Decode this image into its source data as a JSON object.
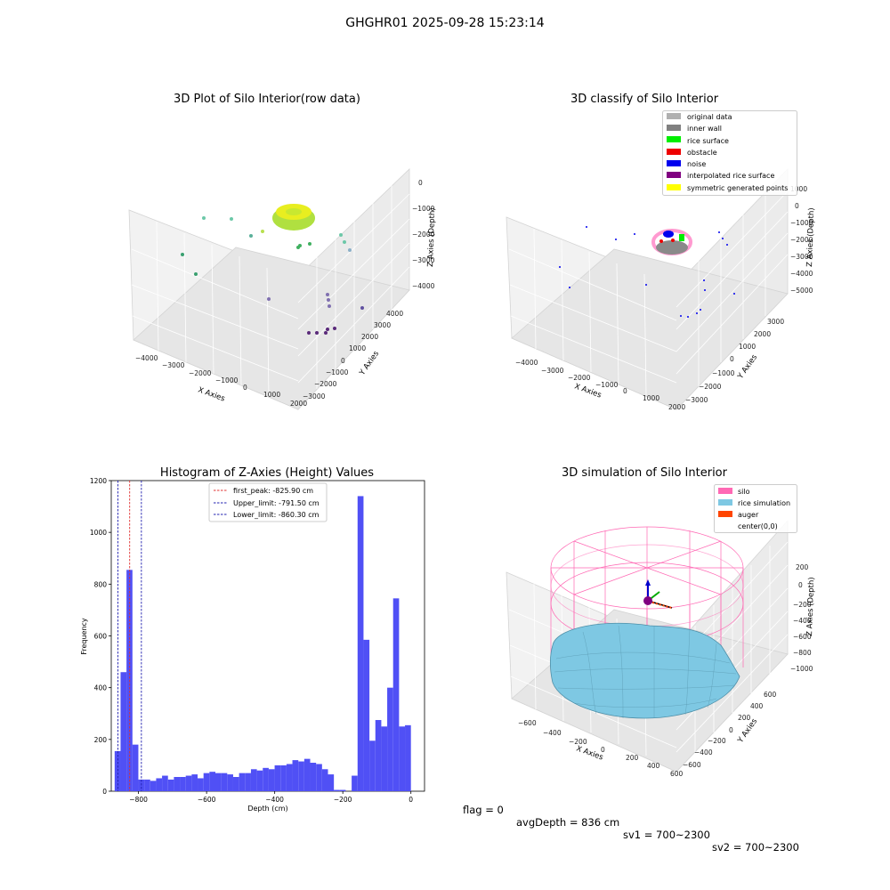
{
  "figure_title": "GHGHR01 2025-09-28 15:23:14",
  "footer": {
    "flag": "flag = 0",
    "avg_depth": "avgDepth = 836 cm",
    "sv1": "sv1 = 700~2300",
    "sv2": "sv2 = 700~2300"
  },
  "colors": {
    "hist_bar": "#5050f5",
    "first_peak_line": "#e03030",
    "limit_line": "#2020b0",
    "silo": "#ff69b4",
    "rice_sim": "#7ec8e3",
    "auger": "#ff4500"
  },
  "chart_data": [
    {
      "type": "scatter",
      "title": "3D Plot of Silo Interior(row data)",
      "xlabel": "X Axies",
      "ylabel": "Y Axies",
      "zlabel": "Z Axies (Depth)",
      "x_ticks": [
        "−4000",
        "−3000",
        "−2000",
        "−1000",
        "0",
        "1000",
        "2000"
      ],
      "y_ticks": [
        "−3000",
        "−2000",
        "−1000",
        "0",
        "1000",
        "2000",
        "3000",
        "4000"
      ],
      "z_ticks": [
        "−4000",
        "−3000",
        "−2000",
        "−1000",
        "0"
      ]
    },
    {
      "type": "scatter",
      "title": "3D classify of Silo Interior",
      "xlabel": "X Axies",
      "ylabel": "Y Axies",
      "zlabel": "Z Axies (Depth)",
      "x_ticks": [
        "−4000",
        "−3000",
        "−2000",
        "−1000",
        "0",
        "1000",
        "2000"
      ],
      "y_ticks": [
        "−3000",
        "−2000",
        "−1000",
        "0",
        "1000",
        "2000",
        "3000"
      ],
      "z_ticks": [
        "−5000",
        "−4000",
        "−3000",
        "−2000",
        "−1000",
        "0",
        "1000"
      ],
      "legend": [
        {
          "label": "original data",
          "color": "#b0b0b0"
        },
        {
          "label": "inner wall",
          "color": "#808080"
        },
        {
          "label": "rice surface",
          "color": "#00ee00"
        },
        {
          "label": "obstacle",
          "color": "#ee0000"
        },
        {
          "label": "noise",
          "color": "#0000ee"
        },
        {
          "label": "interpolated rice surface",
          "color": "#800080"
        },
        {
          "label": "symmetric generated points",
          "color": "#ffff00"
        }
      ],
      "legend_placement": "top-right"
    },
    {
      "type": "bar",
      "title": "Histogram of Z-Axies (Height) Values",
      "xlabel": "Depth (cm)",
      "ylabel": "Frequency",
      "xlim": [
        -880,
        40
      ],
      "ylim": [
        0,
        1200
      ],
      "x_ticks": [
        -800,
        -600,
        -400,
        -200,
        0
      ],
      "y_ticks": [
        0,
        200,
        400,
        600,
        800,
        1000,
        1200
      ],
      "bin_start": -870,
      "bin_width": 17.4,
      "values": [
        155,
        460,
        855,
        180,
        45,
        45,
        40,
        50,
        60,
        45,
        55,
        55,
        60,
        65,
        50,
        70,
        75,
        70,
        70,
        65,
        55,
        70,
        70,
        85,
        80,
        90,
        85,
        100,
        100,
        105,
        120,
        115,
        125,
        110,
        105,
        85,
        65,
        5,
        5,
        0,
        60,
        1140,
        585,
        195,
        275,
        250,
        400,
        745,
        250,
        255
      ],
      "vlines": [
        {
          "label": "first_peak: -825.90 cm",
          "x": -825.9,
          "role": "first_peak"
        },
        {
          "label": "Upper_limit: -791.50 cm",
          "x": -791.5,
          "role": "limit"
        },
        {
          "label": "Lower_limit: -860.30 cm",
          "x": -860.3,
          "role": "limit"
        }
      ],
      "legend_placement": "top-center"
    },
    {
      "type": "surface",
      "title": "3D simulation of Silo Interior",
      "xlabel": "X Axies",
      "ylabel": "Y Axies",
      "zlabel": "Z Axies (Depth)",
      "x_ticks": [
        "−600",
        "−400",
        "−200",
        "0",
        "200",
        "400",
        "600"
      ],
      "y_ticks": [
        "−600",
        "−400",
        "−200",
        "0",
        "200",
        "400",
        "600"
      ],
      "z_ticks": [
        "−1000",
        "−800",
        "−600",
        "−400",
        "−200",
        "0",
        "200"
      ],
      "legend": [
        {
          "label": "silo",
          "color": "#ff69b4"
        },
        {
          "label": "rice simulation",
          "color": "#7ec8e3"
        },
        {
          "label": "auger",
          "color": "#ff4500"
        },
        {
          "label": "center(0,0)",
          "color": ""
        }
      ],
      "legend_placement": "top-right"
    }
  ]
}
